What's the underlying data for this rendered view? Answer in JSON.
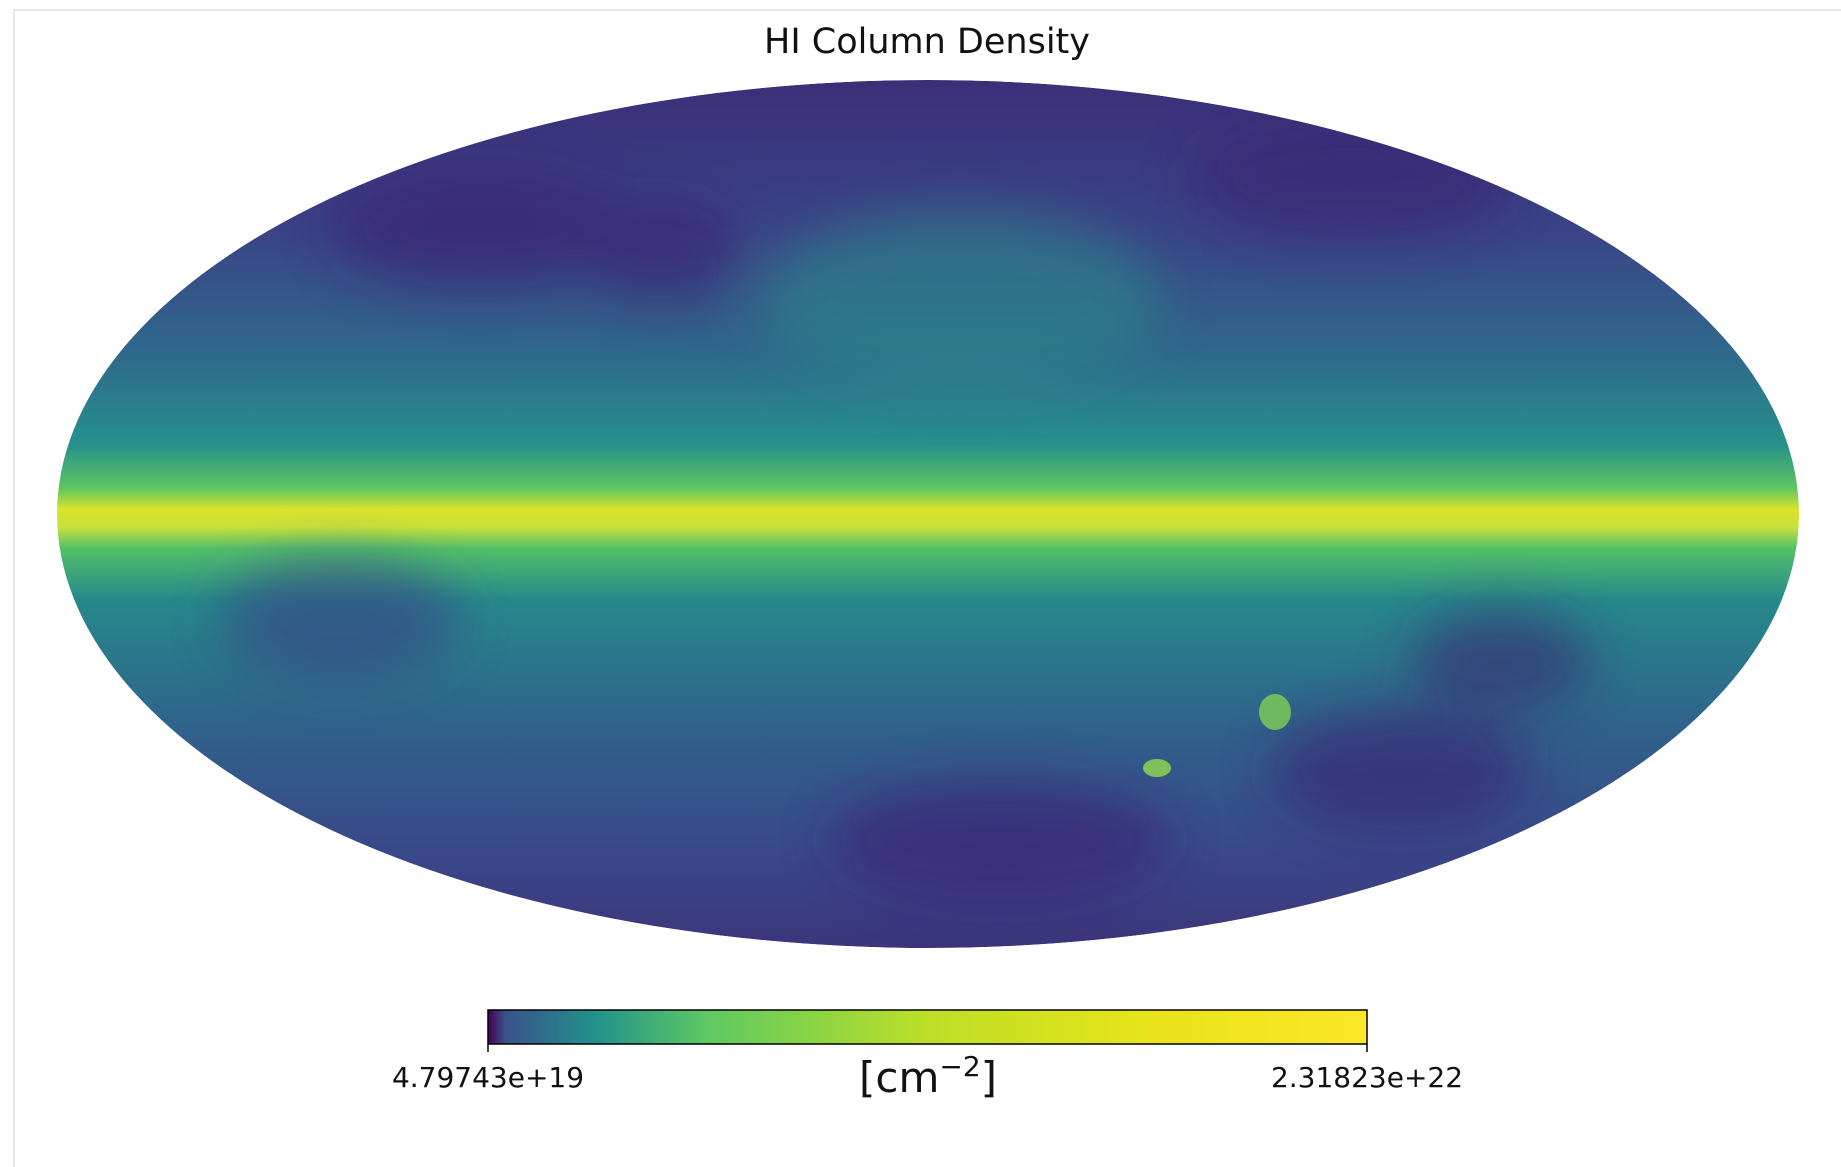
{
  "title": "HI Column Density",
  "colormap": "viridis",
  "colorbar": {
    "min": {
      "value": 4.79743e+19,
      "label": "4.79743e+19"
    },
    "max": {
      "value": 2.31823e+22,
      "label": "2.31823e+22"
    },
    "unit": [
      "[cm",
      "−2",
      "]"
    ]
  }
}
